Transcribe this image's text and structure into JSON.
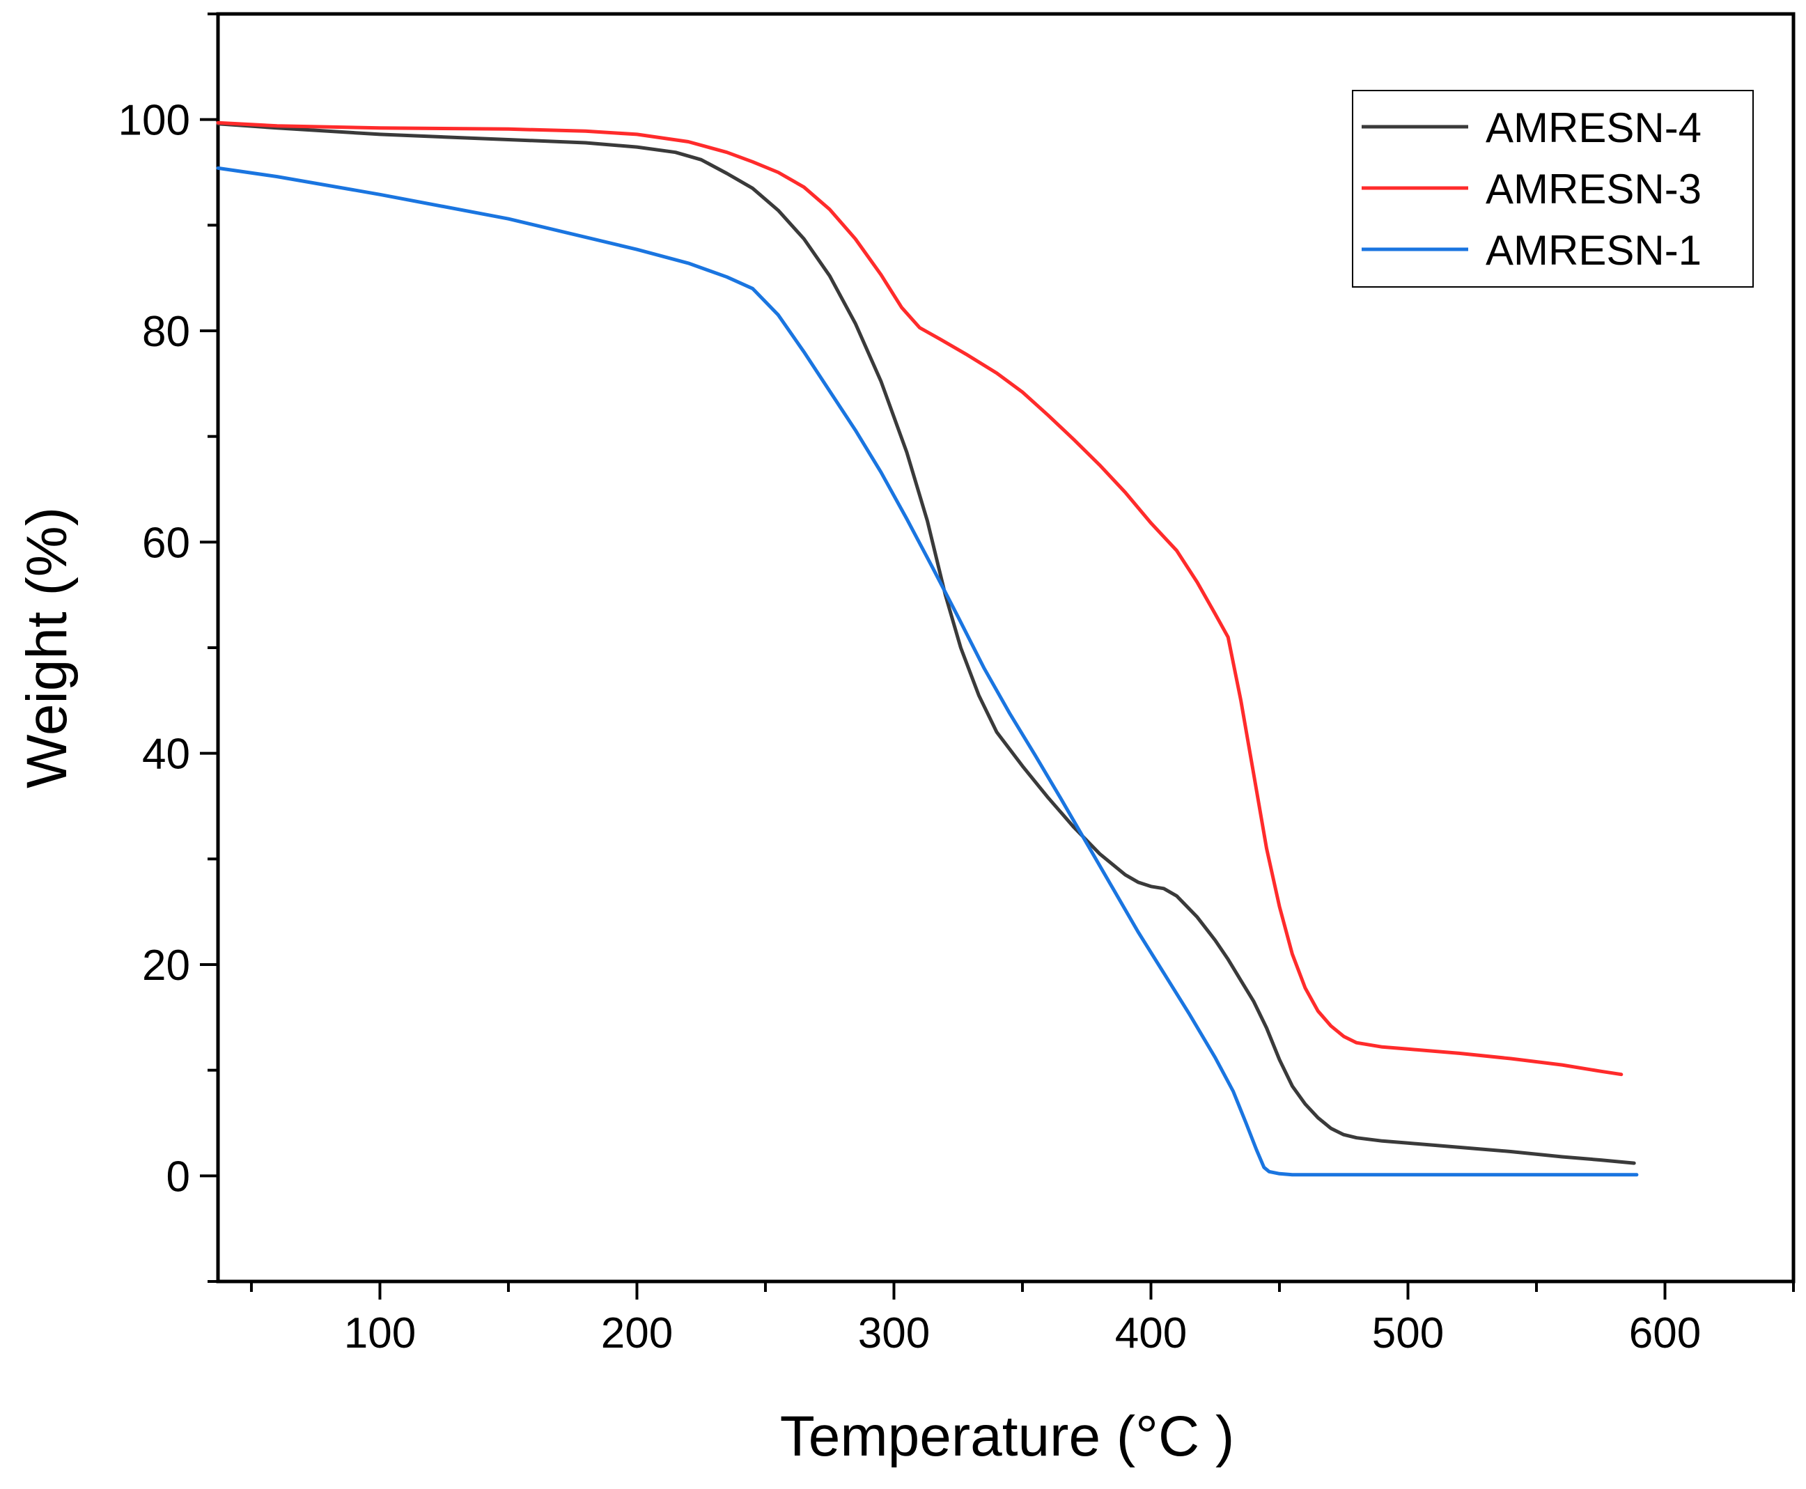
{
  "chart_data": {
    "type": "line",
    "title": "",
    "xlabel": "Temperature (°C )",
    "ylabel": "Weight (%)",
    "xlim": [
      37,
      650
    ],
    "ylim": [
      -10,
      110
    ],
    "x_ticks": [
      100,
      200,
      300,
      400,
      500,
      600
    ],
    "y_ticks": [
      0,
      20,
      40,
      60,
      80,
      100
    ],
    "x_tick_labels": [
      "100",
      "200",
      "300",
      "400",
      "500",
      "600"
    ],
    "y_tick_labels": [
      "0",
      "20",
      "40",
      "60",
      "80",
      "100"
    ],
    "legend_position": "top-right",
    "grid": false,
    "series": [
      {
        "name": "AMRESN-4",
        "color": "#3a3a3a",
        "points": [
          [
            37,
            99.6
          ],
          [
            60,
            99.2
          ],
          [
            100,
            98.6
          ],
          [
            150,
            98.1
          ],
          [
            180,
            97.8
          ],
          [
            200,
            97.4
          ],
          [
            215,
            96.9
          ],
          [
            225,
            96.2
          ],
          [
            235,
            94.9
          ],
          [
            245,
            93.5
          ],
          [
            255,
            91.4
          ],
          [
            265,
            88.7
          ],
          [
            275,
            85.2
          ],
          [
            285,
            80.7
          ],
          [
            295,
            75.2
          ],
          [
            305,
            68.5
          ],
          [
            313,
            62
          ],
          [
            320,
            55
          ],
          [
            326,
            50
          ],
          [
            333,
            45.5
          ],
          [
            340,
            42
          ],
          [
            350,
            38.8
          ],
          [
            360,
            35.8
          ],
          [
            370,
            33
          ],
          [
            380,
            30.5
          ],
          [
            390,
            28.5
          ],
          [
            395,
            27.8
          ],
          [
            400,
            27.4
          ],
          [
            405,
            27.2
          ],
          [
            410,
            26.5
          ],
          [
            418,
            24.5
          ],
          [
            425,
            22.3
          ],
          [
            430,
            20.5
          ],
          [
            435,
            18.5
          ],
          [
            440,
            16.5
          ],
          [
            445,
            14
          ],
          [
            450,
            11
          ],
          [
            455,
            8.5
          ],
          [
            460,
            6.8
          ],
          [
            465,
            5.5
          ],
          [
            470,
            4.5
          ],
          [
            475,
            3.9
          ],
          [
            480,
            3.6
          ],
          [
            490,
            3.3
          ],
          [
            500,
            3.1
          ],
          [
            520,
            2.7
          ],
          [
            540,
            2.3
          ],
          [
            560,
            1.8
          ],
          [
            575,
            1.5
          ],
          [
            588,
            1.2
          ]
        ]
      },
      {
        "name": "AMRESN-3",
        "color": "#ff2b2b",
        "points": [
          [
            37,
            99.7
          ],
          [
            60,
            99.4
          ],
          [
            100,
            99.2
          ],
          [
            150,
            99.1
          ],
          [
            180,
            98.9
          ],
          [
            200,
            98.6
          ],
          [
            220,
            97.9
          ],
          [
            235,
            96.9
          ],
          [
            245,
            96
          ],
          [
            255,
            95
          ],
          [
            265,
            93.6
          ],
          [
            275,
            91.5
          ],
          [
            285,
            88.7
          ],
          [
            295,
            85.3
          ],
          [
            303,
            82.2
          ],
          [
            310,
            80.3
          ],
          [
            318,
            79.2
          ],
          [
            328,
            77.8
          ],
          [
            340,
            76
          ],
          [
            350,
            74.2
          ],
          [
            360,
            72
          ],
          [
            370,
            69.7
          ],
          [
            380,
            67.3
          ],
          [
            390,
            64.7
          ],
          [
            400,
            61.8
          ],
          [
            410,
            59.2
          ],
          [
            418,
            56.2
          ],
          [
            425,
            53.2
          ],
          [
            430,
            51
          ],
          [
            435,
            45
          ],
          [
            440,
            38
          ],
          [
            445,
            31
          ],
          [
            450,
            25.5
          ],
          [
            455,
            21
          ],
          [
            460,
            17.8
          ],
          [
            465,
            15.6
          ],
          [
            470,
            14.2
          ],
          [
            475,
            13.2
          ],
          [
            480,
            12.6
          ],
          [
            490,
            12.2
          ],
          [
            500,
            12
          ],
          [
            520,
            11.6
          ],
          [
            540,
            11.1
          ],
          [
            560,
            10.5
          ],
          [
            575,
            9.9
          ],
          [
            583,
            9.6
          ]
        ]
      },
      {
        "name": "AMRESN-1",
        "color": "#1a75e0",
        "points": [
          [
            37,
            95.4
          ],
          [
            60,
            94.6
          ],
          [
            100,
            92.9
          ],
          [
            150,
            90.6
          ],
          [
            200,
            87.7
          ],
          [
            220,
            86.4
          ],
          [
            235,
            85.1
          ],
          [
            245,
            84
          ],
          [
            255,
            81.5
          ],
          [
            265,
            78
          ],
          [
            275,
            74.3
          ],
          [
            285,
            70.6
          ],
          [
            295,
            66.6
          ],
          [
            305,
            62.2
          ],
          [
            315,
            57.6
          ],
          [
            325,
            52.9
          ],
          [
            335,
            48.1
          ],
          [
            345,
            43.8
          ],
          [
            355,
            39.8
          ],
          [
            365,
            35.7
          ],
          [
            375,
            31.5
          ],
          [
            385,
            27.3
          ],
          [
            395,
            23.1
          ],
          [
            405,
            19.2
          ],
          [
            415,
            15.3
          ],
          [
            425,
            11.2
          ],
          [
            432,
            8
          ],
          [
            437,
            5
          ],
          [
            441,
            2.5
          ],
          [
            444,
            0.8
          ],
          [
            446,
            0.4
          ],
          [
            450,
            0.2
          ],
          [
            455,
            0.1
          ],
          [
            500,
            0.1
          ],
          [
            550,
            0.1
          ],
          [
            589,
            0.1
          ]
        ]
      }
    ]
  }
}
